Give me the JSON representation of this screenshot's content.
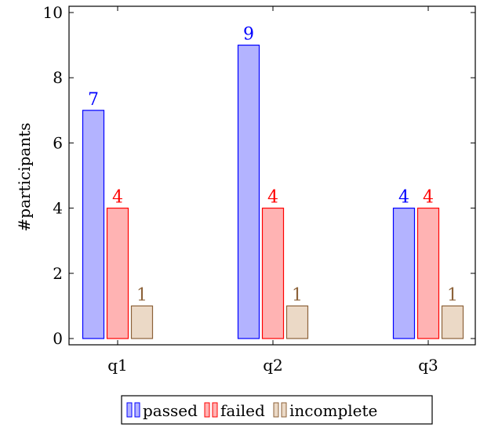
{
  "chart_data": {
    "type": "bar",
    "title": "",
    "xlabel": "",
    "ylabel": "#participants",
    "categories": [
      "q1",
      "q2",
      "q3"
    ],
    "ylim": [
      0,
      10
    ],
    "yticks": [
      0,
      2,
      4,
      6,
      8,
      10
    ],
    "grid": false,
    "legend_position": "bottom-center",
    "series": [
      {
        "name": "passed",
        "values": [
          7,
          9,
          4
        ],
        "fill": "#b3b3ff",
        "stroke": "#0000ff",
        "label_color": "#0000ff"
      },
      {
        "name": "failed",
        "values": [
          4,
          4,
          4
        ],
        "fill": "#ffb3b3",
        "stroke": "#ff0000",
        "label_color": "#ff0000"
      },
      {
        "name": "incomplete",
        "values": [
          1,
          1,
          1
        ],
        "fill": "#ebd9c6",
        "stroke": "#8c6239",
        "label_color": "#8c6239"
      }
    ]
  }
}
